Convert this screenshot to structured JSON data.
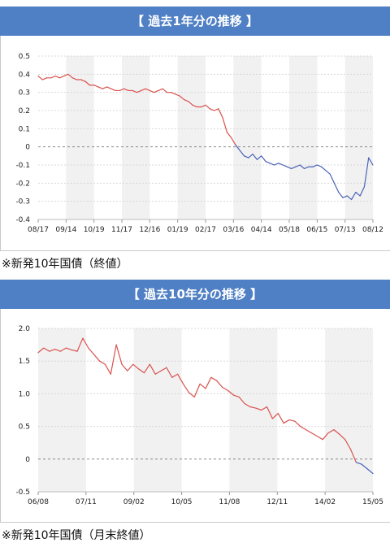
{
  "panel1": {
    "title": "【 過去1年分の推移 】",
    "note": "※新発10年国債（終値）"
  },
  "panel2": {
    "title": "【 過去10年分の推移 】",
    "note": "※新発10年国債（月末終値）"
  },
  "colors": {
    "header": "#4f7fc4",
    "positive_line": "#d9534f",
    "negative_line": "#4a63b8",
    "band": "#f1f1f1",
    "grid": "#d8d8d8"
  },
  "chart_data": [
    {
      "type": "line",
      "title": "【 過去1年分の推移 】",
      "xlabel": "",
      "ylabel": "",
      "ylim": [
        -0.4,
        0.5
      ],
      "yticks": [
        -0.4,
        -0.3,
        -0.2,
        -0.1,
        0,
        0.1,
        0.2,
        0.3,
        0.4,
        0.5
      ],
      "ytick_labels": [
        "-0.4",
        "-0.3",
        "-0.2",
        "-0.1",
        "0",
        "0.1",
        "0.2",
        "0.3",
        "0.4",
        "0.5"
      ],
      "xtick_labels": [
        "08/17",
        "09/14",
        "10/19",
        "11/17",
        "12/16",
        "01/19",
        "02/17",
        "03/16",
        "04/14",
        "05/18",
        "06/15",
        "07/13",
        "08/12"
      ],
      "grid": true,
      "zero_line": "dashed",
      "line_color_above_zero": "#d9534f",
      "line_color_below_zero": "#4a63b8",
      "series": [
        {
          "values": [
            0.39,
            0.37,
            0.38,
            0.38,
            0.39,
            0.38,
            0.39,
            0.4,
            0.38,
            0.37,
            0.37,
            0.36,
            0.34,
            0.34,
            0.33,
            0.32,
            0.33,
            0.32,
            0.31,
            0.31,
            0.32,
            0.31,
            0.31,
            0.3,
            0.31,
            0.32,
            0.31,
            0.3,
            0.31,
            0.32,
            0.3,
            0.3,
            0.29,
            0.28,
            0.26,
            0.25,
            0.23,
            0.22,
            0.22,
            0.23,
            0.21,
            0.2,
            0.21,
            0.16,
            0.08,
            0.05,
            0.01,
            -0.02,
            -0.05,
            -0.06,
            -0.04,
            -0.07,
            -0.05,
            -0.08,
            -0.09,
            -0.1,
            -0.09,
            -0.1,
            -0.11,
            -0.12,
            -0.11,
            -0.1,
            -0.12,
            -0.11,
            -0.11,
            -0.1,
            -0.11,
            -0.13,
            -0.15,
            -0.2,
            -0.25,
            -0.28,
            -0.27,
            -0.29,
            -0.25,
            -0.27,
            -0.22,
            -0.06,
            -0.1
          ]
        }
      ]
    },
    {
      "type": "line",
      "title": "【 過去10年分の推移 】",
      "xlabel": "",
      "ylabel": "",
      "ylim": [
        -0.5,
        2.0
      ],
      "yticks": [
        -0.5,
        0,
        0.5,
        1.0,
        1.5,
        2.0
      ],
      "ytick_labels": [
        "-0.5",
        "0",
        "0.5",
        "1.0",
        "1.5",
        "2.0"
      ],
      "xtick_labels": [
        "06/08",
        "07/11",
        "09/02",
        "10/05",
        "11/08",
        "12/11",
        "14/02",
        "15/05"
      ],
      "grid": true,
      "zero_line": "dashed",
      "line_color_above_zero": "#d9534f",
      "line_color_below_zero": "#4a63b8",
      "series": [
        {
          "values": [
            1.63,
            1.7,
            1.65,
            1.68,
            1.65,
            1.7,
            1.67,
            1.65,
            1.85,
            1.7,
            1.6,
            1.5,
            1.45,
            1.3,
            1.75,
            1.45,
            1.35,
            1.45,
            1.38,
            1.32,
            1.45,
            1.3,
            1.35,
            1.4,
            1.25,
            1.3,
            1.15,
            1.02,
            0.95,
            1.15,
            1.08,
            1.25,
            1.2,
            1.1,
            1.05,
            0.98,
            0.95,
            0.85,
            0.8,
            0.78,
            0.75,
            0.8,
            0.62,
            0.7,
            0.55,
            0.6,
            0.58,
            0.5,
            0.45,
            0.4,
            0.35,
            0.3,
            0.4,
            0.45,
            0.38,
            0.3,
            0.15,
            -0.05,
            -0.08,
            -0.15,
            -0.22
          ]
        }
      ]
    }
  ]
}
